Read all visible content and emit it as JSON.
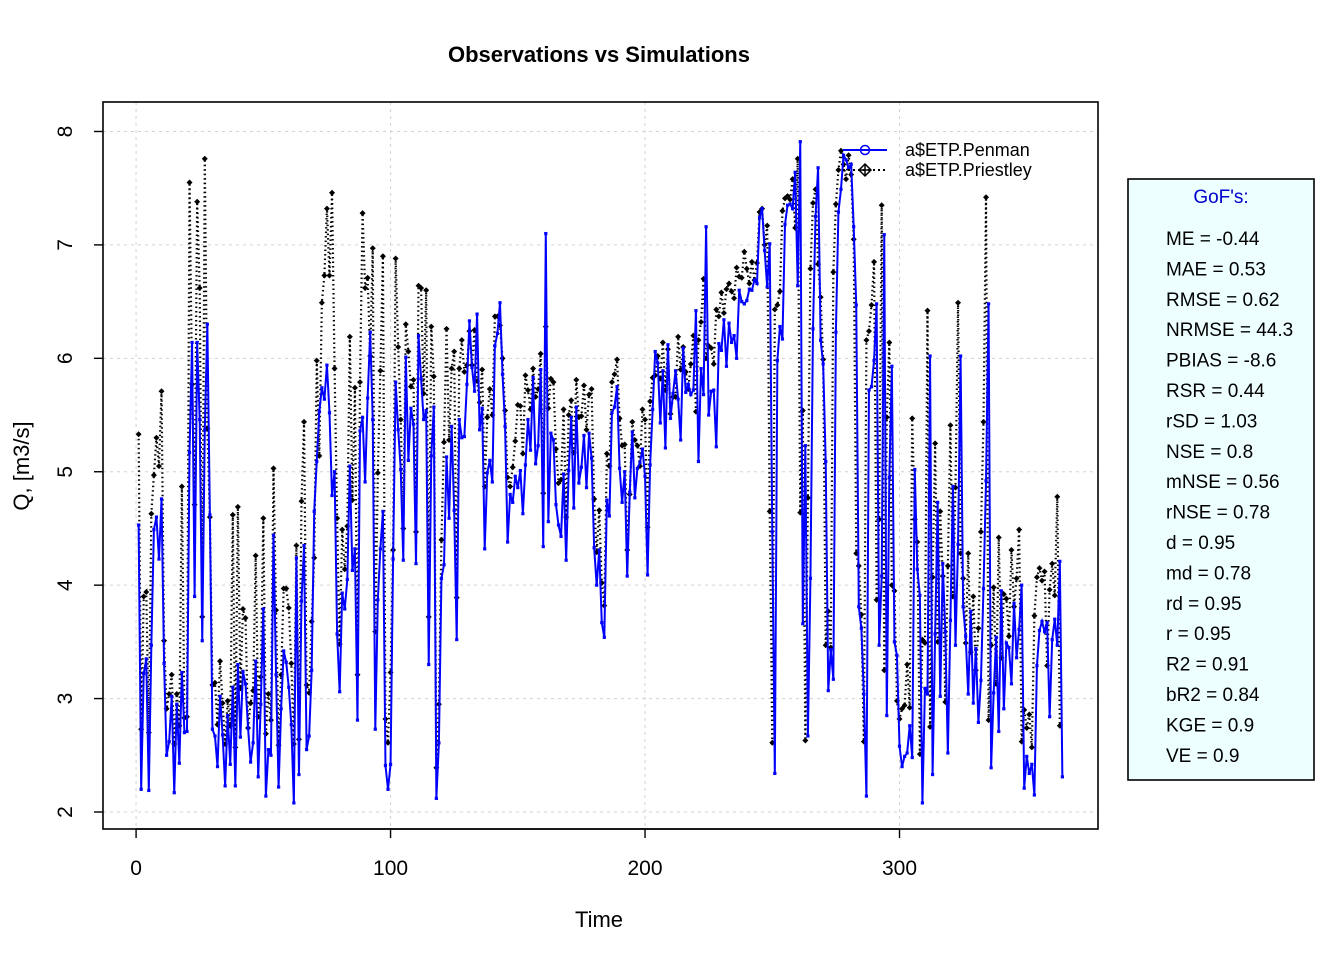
{
  "chart_data": {
    "type": "line",
    "title": "Observations vs Simulations",
    "xlabel": "Time",
    "ylabel": "Q, [m3/s]",
    "xlim": [
      -13,
      378
    ],
    "ylim": [
      1.85,
      8.26
    ],
    "xticks": [
      0,
      100,
      200,
      300
    ],
    "yticks": [
      2,
      3,
      4,
      5,
      6,
      7,
      8
    ],
    "grid": true,
    "legend_position": "top-right",
    "x_start": 1,
    "x_step": 1,
    "series": [
      {
        "name": "a$ETP.Penman",
        "color": "#0000ff",
        "line": "solid",
        "marker": "small-square",
        "values": [
          4.53,
          2.2,
          3.22,
          3.35,
          2.19,
          3.47,
          4.49,
          4.6,
          4.23,
          4.76,
          3.31,
          2.5,
          2.62,
          3.02,
          2.17,
          2.95,
          2.43,
          3.23,
          2.7,
          2.71,
          5.17,
          6.14,
          3.9,
          6.14,
          5.46,
          3.51,
          5.37,
          6.3,
          4.62,
          2.73,
          2.67,
          2.4,
          3.02,
          2.68,
          2.23,
          2.85,
          2.42,
          3.1,
          2.23,
          3.3,
          2.66,
          3.24,
          3.13,
          2.74,
          2.44,
          2.61,
          3.33,
          2.31,
          2.95,
          3.79,
          2.14,
          2.55,
          2.5,
          4.44,
          3.21,
          2.22,
          2.91,
          3.42,
          3.32,
          3.1,
          2.77,
          2.08,
          4.24,
          2.33,
          3.86,
          4.35,
          2.55,
          2.67,
          3.25,
          4.65,
          5.09,
          5.53,
          5.74,
          5.64,
          5.94,
          5.52,
          4.79,
          5.0,
          3.57,
          3.06,
          3.93,
          3.79,
          4.05,
          5.05,
          4.13,
          4.32,
          2.81,
          5.36,
          5.48,
          4.91,
          5.65,
          6.23,
          5.46,
          2.73,
          3.87,
          4.32,
          4.65,
          2.41,
          2.2,
          2.42,
          4.23,
          5.79,
          5.37,
          5.02,
          4.22,
          6.01,
          5.1,
          5.56,
          5.42,
          4.19,
          6.2,
          5.82,
          5.46,
          5.54,
          3.3,
          5.14,
          5.57,
          2.12,
          2.61,
          4.06,
          4.18,
          5.13,
          4.59,
          5.4,
          4.66,
          3.52,
          5.46,
          5.3,
          5.31,
          5.77,
          6.33,
          5.92,
          5.71,
          6.39,
          5.37,
          5.56,
          4.32,
          4.99,
          5.1,
          4.91,
          6.11,
          6.22,
          6.49,
          5.86,
          5.4,
          4.38,
          4.8,
          4.73,
          4.96,
          4.86,
          5.01,
          4.63,
          5.06,
          5.46,
          5.19,
          5.83,
          5.07,
          5.23,
          5.9,
          4.34,
          7.1,
          4.56,
          5.34,
          5.28,
          4.71,
          4.53,
          4.43,
          4.98,
          4.22,
          5.01,
          5.48,
          4.68,
          5.57,
          4.9,
          5.04,
          5.32,
          4.86,
          5.34,
          5.12,
          4.33,
          4.0,
          4.31,
          3.67,
          3.54,
          4.75,
          4.61,
          5.52,
          5.57,
          5.75,
          5.03,
          4.73,
          5.0,
          4.08,
          4.82,
          5.35,
          4.77,
          5.03,
          5.08,
          5.2,
          4.96,
          4.09,
          5.06,
          5.55,
          6.06,
          5.96,
          5.43,
          5.89,
          5.21,
          6.12,
          5.47,
          5.69,
          5.89,
          5.64,
          5.28,
          6.09,
          5.7,
          5.77,
          5.68,
          5.72,
          6.42,
          5.09,
          5.91,
          5.68,
          7.16,
          5.5,
          5.71,
          5.72,
          5.22,
          6.13,
          6.07,
          6.34,
          5.93,
          6.31,
          6.14,
          6.2,
          6.0,
          6.6,
          6.5,
          6.48,
          6.51,
          6.61,
          6.6,
          6.69,
          6.66,
          7.24,
          7.32,
          6.95,
          6.63,
          7.01,
          4.47,
          2.34,
          5.98,
          6.28,
          6.17,
          7.18,
          7.35,
          7.36,
          7.32,
          7.64,
          6.64,
          7.91,
          3.66,
          5.23,
          2.67,
          4.06,
          6.26,
          7.25,
          7.68,
          6.16,
          5.95,
          5.09,
          3.07,
          3.43,
          3.17,
          6.23,
          7.29,
          7.49,
          7.79,
          7.75,
          7.68,
          7.71,
          7.16,
          6.47,
          3.81,
          3.62,
          3.04,
          2.14,
          5.72,
          5.75,
          5.98,
          6.48,
          3.47,
          4.08,
          7.09,
          2.85,
          4.95,
          5.93,
          3.5,
          3.38,
          2.58,
          2.4,
          2.49,
          2.52,
          2.76,
          2.48,
          5.02,
          4.14,
          3.91,
          2.08,
          3.09,
          3.04,
          6.02,
          2.33,
          3.57,
          4.73,
          3.02,
          4.19,
          3.59,
          2.52,
          3.69,
          4.87,
          3.47,
          4.36,
          6.02,
          3.81,
          3.55,
          3.04,
          3.77,
          2.96,
          3.44,
          2.79,
          3.16,
          3.97,
          4.92,
          6.48,
          2.39,
          3.05,
          3.54,
          2.71,
          3.95,
          2.91,
          3.49,
          3.45,
          3.13,
          3.84,
          3.36,
          3.61,
          4.0,
          2.21,
          2.49,
          2.34,
          2.42,
          2.15,
          3.29,
          3.6,
          3.68,
          3.59,
          3.67,
          2.84,
          3.52,
          3.7,
          3.47,
          4.21,
          2.31
        ]
      },
      {
        "name": "a$ETP.Priestley",
        "color": "#000000",
        "line": "dotted",
        "marker": "small-diamond",
        "values": [
          5.33,
          2.73,
          3.9,
          3.94,
          2.7,
          4.63,
          4.97,
          5.3,
          5.05,
          5.71,
          3.51,
          2.91,
          3.04,
          3.21,
          2.6,
          3.04,
          2.76,
          4.87,
          2.83,
          2.84,
          7.55,
          5.77,
          4.71,
          7.38,
          6.62,
          3.72,
          7.76,
          5.38,
          4.6,
          3.12,
          3.14,
          2.77,
          3.33,
          2.96,
          2.6,
          2.98,
          2.76,
          4.62,
          2.57,
          4.69,
          3.09,
          3.79,
          3.71,
          2.74,
          2.96,
          3.07,
          4.26,
          2.84,
          3.19,
          4.59,
          2.69,
          3.04,
          2.81,
          5.03,
          3.78,
          2.59,
          3.21,
          3.97,
          3.97,
          3.8,
          3.31,
          2.6,
          4.35,
          2.64,
          4.74,
          5.44,
          3.12,
          3.05,
          3.68,
          4.24,
          5.98,
          5.14,
          6.49,
          6.73,
          7.32,
          6.73,
          7.46,
          5.91,
          4.59,
          3.48,
          4.49,
          4.14,
          4.52,
          6.19,
          4.75,
          5.74,
          3.21,
          5.79,
          7.28,
          6.62,
          6.71,
          6.02,
          6.97,
          3.59,
          4.99,
          5.89,
          6.9,
          2.82,
          2.61,
          3.23,
          4.31,
          6.88,
          6.1,
          5.46,
          4.5,
          6.3,
          6.06,
          5.75,
          5.81,
          4.47,
          6.64,
          6.62,
          5.69,
          6.6,
          3.72,
          6.28,
          5.84,
          2.39,
          2.95,
          4.4,
          5.26,
          6.26,
          5.28,
          5.91,
          6.06,
          3.89,
          5.91,
          6.16,
          5.88,
          5.94,
          6.24,
          5.94,
          6.25,
          5.8,
          5.61,
          5.9,
          4.87,
          5.48,
          5.73,
          5.5,
          6.37,
          6.37,
          6.29,
          6.0,
          5.54,
          4.95,
          4.87,
          5.04,
          5.27,
          5.59,
          5.58,
          5.16,
          5.85,
          5.72,
          5.55,
          5.91,
          5.66,
          5.73,
          6.04,
          4.81,
          6.28,
          5.56,
          5.82,
          5.79,
          5.2,
          4.9,
          4.93,
          5.55,
          4.6,
          5.5,
          5.63,
          5.17,
          5.81,
          5.48,
          5.49,
          5.76,
          5.37,
          5.68,
          5.73,
          4.76,
          4.29,
          4.66,
          4.02,
          3.82,
          5.16,
          5.05,
          5.79,
          5.86,
          5.99,
          5.47,
          5.23,
          5.24,
          4.31,
          4.8,
          5.44,
          5.28,
          5.23,
          5.05,
          5.55,
          5.46,
          4.51,
          5.62,
          5.83,
          5.85,
          6.02,
          5.82,
          6.14,
          5.72,
          6.08,
          5.51,
          5.66,
          5.66,
          6.19,
          5.9,
          6.1,
          5.88,
          5.73,
          5.95,
          6.2,
          5.53,
          6.16,
          6.32,
          6.7,
          6.0,
          6.11,
          6.09,
          5.95,
          6.43,
          6.37,
          6.58,
          6.4,
          6.61,
          6.66,
          6.59,
          6.53,
          6.8,
          6.72,
          6.71,
          6.94,
          6.79,
          6.66,
          6.85,
          6.69,
          6.84,
          7.29,
          7.32,
          7.0,
          7.17,
          4.65,
          2.61,
          6.43,
          6.47,
          6.59,
          7.3,
          7.41,
          7.43,
          7.4,
          7.58,
          7.15,
          7.76,
          4.64,
          5.54,
          2.63,
          4.77,
          6.79,
          7.37,
          7.49,
          6.83,
          6.54,
          5.99,
          3.47,
          3.77,
          3.45,
          6.76,
          7.36,
          7.66,
          7.83,
          7.71,
          7.58,
          7.79,
          7.62,
          7.05,
          4.28,
          4.17,
          3.74,
          2.62,
          6.16,
          6.24,
          6.47,
          6.85,
          3.87,
          4.58,
          7.35,
          3.25,
          5.48,
          6.14,
          4.0,
          3.95,
          2.98,
          2.82,
          2.91,
          2.94,
          3.3,
          2.92,
          5.47,
          4.58,
          4.38,
          2.51,
          3.52,
          3.49,
          6.42,
          2.75,
          4.07,
          5.25,
          3.5,
          4.65,
          4.08,
          2.97,
          4.17,
          5.41,
          3.9,
          4.86,
          6.49,
          4.28,
          4.06,
          3.49,
          4.28,
          3.41,
          3.9,
          3.25,
          3.62,
          4.47,
          5.44,
          7.42,
          2.81,
          3.47,
          3.98,
          3.13,
          4.42,
          3.36,
          3.92,
          3.88,
          3.55,
          4.31,
          3.81,
          4.06,
          4.49,
          2.62,
          2.9,
          2.74,
          2.86,
          2.57,
          3.73,
          4.07,
          4.15,
          4.04,
          4.12,
          3.29,
          3.96,
          4.19,
          3.91,
          4.78,
          2.76
        ]
      }
    ],
    "gof": {
      "title": "GoF's:",
      "lines": [
        "ME = -0.44",
        "MAE = 0.53",
        "RMSE = 0.62",
        "NRMSE = 44.3",
        "PBIAS = -8.6",
        "RSR = 0.44",
        "rSD = 1.03",
        "NSE = 0.8",
        "mNSE = 0.56",
        "rNSE = 0.78",
        "d = 0.95",
        "md = 0.78",
        "rd = 0.95",
        "r = 0.95",
        "R2 = 0.91",
        "bR2 = 0.84",
        "KGE = 0.9",
        "VE = 0.9"
      ]
    },
    "colors": {
      "gof_background": "#eeffff",
      "gof_title": "#0000cc",
      "grid": "#d3d3d3"
    }
  }
}
